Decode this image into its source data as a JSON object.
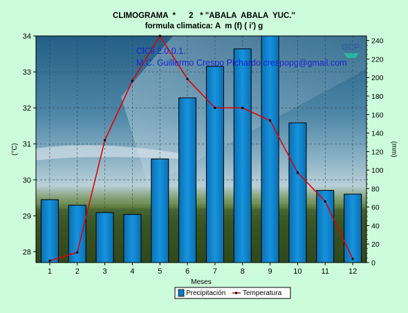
{
  "chart_data": {
    "type": "bar",
    "title": "CLIMOGRAMA  *      2   * \"ABALA  ABALA  YUC.\"",
    "subtitle": "formula climatica: A  m (f) ( i') g",
    "xlabel": "Meses",
    "ylabel_left": "(°C)",
    "ylabel_right": "(mm)",
    "categories": [
      "1",
      "2",
      "3",
      "4",
      "5",
      "6",
      "7",
      "8",
      "9",
      "10",
      "11",
      "12"
    ],
    "ylim_left": [
      27.7,
      34.0
    ],
    "ylim_right": [
      0,
      245
    ],
    "yticks_left": [
      "28",
      "29",
      "30",
      "31",
      "32",
      "33",
      "34"
    ],
    "yticks_right": [
      "0",
      "20",
      "40",
      "60",
      "80",
      "100",
      "120",
      "140",
      "160",
      "180",
      "200",
      "220",
      "240"
    ],
    "grid": true,
    "legend_position": "bottom-center",
    "watermark_lines": [
      "ClCli 2.0.0.1.",
      "M.C. Guillermo Crespo Pichardo   crespopg@gmail.com"
    ],
    "logo_text": "GCP",
    "series": [
      {
        "name": "Precipitación",
        "kind": "bar",
        "axis": "right",
        "color": "#0a7ec6",
        "values": [
          68,
          62,
          54,
          52,
          112,
          178,
          212,
          231,
          248,
          151,
          78,
          74
        ]
      },
      {
        "name": "Temperatura",
        "kind": "line",
        "axis": "left",
        "color": "#e00000",
        "values": [
          27.75,
          27.98,
          31.1,
          32.75,
          34.05,
          32.8,
          32.0,
          32.0,
          31.65,
          30.2,
          29.4,
          27.8
        ]
      }
    ]
  }
}
